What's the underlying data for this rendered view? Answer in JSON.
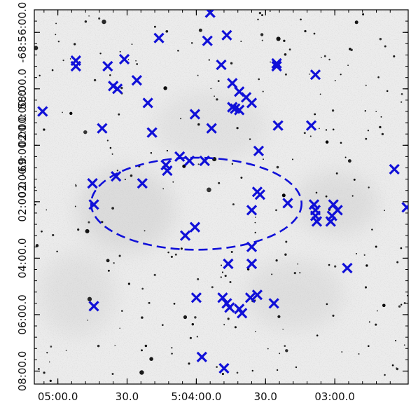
{
  "chart_data": {
    "type": "scatter",
    "x_axis": {
      "ticks": [
        {
          "label": "05:00.0",
          "value": 0
        },
        {
          "label": "30.0",
          "value": 0.5
        },
        {
          "label": "5:04:00.0",
          "value": 1
        },
        {
          "label": "30.0",
          "value": 1.5
        },
        {
          "label": "03:00.0",
          "value": 2
        }
      ],
      "range": [
        -0.17,
        2.53
      ]
    },
    "y_axis": {
      "ticks": [
        {
          "label": "-68:56:00.0",
          "value": -56
        },
        {
          "label": "58:00.0",
          "value": -58
        },
        {
          "label": "-69:00:00.0",
          "value": -60
        },
        {
          "label": "02:00.0",
          "value": -62
        },
        {
          "label": "04:00.0",
          "value": -64
        },
        {
          "label": "06:00.0",
          "value": -66
        },
        {
          "label": "08:00.0",
          "value": -68
        }
      ],
      "y_label_prefixes": [
        "02:00:00.0",
        "02:00.0"
      ],
      "range": [
        -68.46,
        -55.2
      ]
    },
    "background": "grayscale sky image",
    "marker": {
      "symbol": "x",
      "color": "#1010d8"
    },
    "circle": {
      "center": [
        1.0,
        -62.07
      ],
      "radius_ra": 0.76,
      "radius_dec": 1.63,
      "style": "dashed",
      "color": "#1010d8"
    },
    "points": [
      [
        1.1,
        -55.3
      ],
      [
        0.13,
        -57.0
      ],
      [
        0.13,
        -57.2
      ],
      [
        0.36,
        -57.2
      ],
      [
        0.48,
        -56.95
      ],
      [
        0.73,
        -56.2
      ],
      [
        1.08,
        -56.3
      ],
      [
        1.22,
        -56.1
      ],
      [
        1.58,
        -57.1
      ],
      [
        1.58,
        -57.2
      ],
      [
        1.86,
        -57.5
      ],
      [
        0.4,
        -57.9
      ],
      [
        0.43,
        -58.0
      ],
      [
        0.57,
        -57.7
      ],
      [
        0.65,
        -58.5
      ],
      [
        -0.11,
        -58.8
      ],
      [
        1.18,
        -57.15
      ],
      [
        1.26,
        -57.8
      ],
      [
        1.31,
        -58.1
      ],
      [
        1.36,
        -58.3
      ],
      [
        1.4,
        -58.5
      ],
      [
        1.26,
        -58.65
      ],
      [
        1.31,
        -58.75
      ],
      [
        1.28,
        -58.7
      ],
      [
        0.99,
        -58.9
      ],
      [
        1.11,
        -59.4
      ],
      [
        0.32,
        -59.4
      ],
      [
        0.68,
        -59.55
      ],
      [
        1.59,
        -59.3
      ],
      [
        1.83,
        -59.3
      ],
      [
        1.45,
        -60.2
      ],
      [
        0.88,
        -60.4
      ],
      [
        0.78,
        -60.7
      ],
      [
        0.79,
        -60.9
      ],
      [
        0.95,
        -60.55
      ],
      [
        1.06,
        -60.55
      ],
      [
        0.42,
        -61.1
      ],
      [
        0.61,
        -61.35
      ],
      [
        0.25,
        -61.35
      ],
      [
        0.26,
        -62.1
      ],
      [
        2.43,
        -60.85
      ],
      [
        1.44,
        -61.65
      ],
      [
        1.46,
        -61.75
      ],
      [
        1.66,
        -62.05
      ],
      [
        1.85,
        -62.1
      ],
      [
        1.99,
        -62.1
      ],
      [
        1.86,
        -62.3
      ],
      [
        1.86,
        -62.5
      ],
      [
        1.87,
        -62.7
      ],
      [
        1.98,
        -62.5
      ],
      [
        2.02,
        -62.3
      ],
      [
        1.97,
        -62.7
      ],
      [
        2.52,
        -62.2
      ],
      [
        1.4,
        -62.3
      ],
      [
        0.99,
        -62.9
      ],
      [
        0.92,
        -63.2
      ],
      [
        1.4,
        -63.6
      ],
      [
        1.4,
        -64.2
      ],
      [
        1.23,
        -64.2
      ],
      [
        2.09,
        -64.35
      ],
      [
        1.0,
        -65.4
      ],
      [
        1.19,
        -65.4
      ],
      [
        1.22,
        -65.6
      ],
      [
        1.24,
        -65.75
      ],
      [
        1.31,
        -65.8
      ],
      [
        1.33,
        -65.95
      ],
      [
        1.39,
        -65.4
      ],
      [
        1.44,
        -65.3
      ],
      [
        1.56,
        -65.6
      ],
      [
        0.26,
        -65.7
      ],
      [
        1.04,
        -67.5
      ],
      [
        1.2,
        -67.9
      ]
    ]
  }
}
